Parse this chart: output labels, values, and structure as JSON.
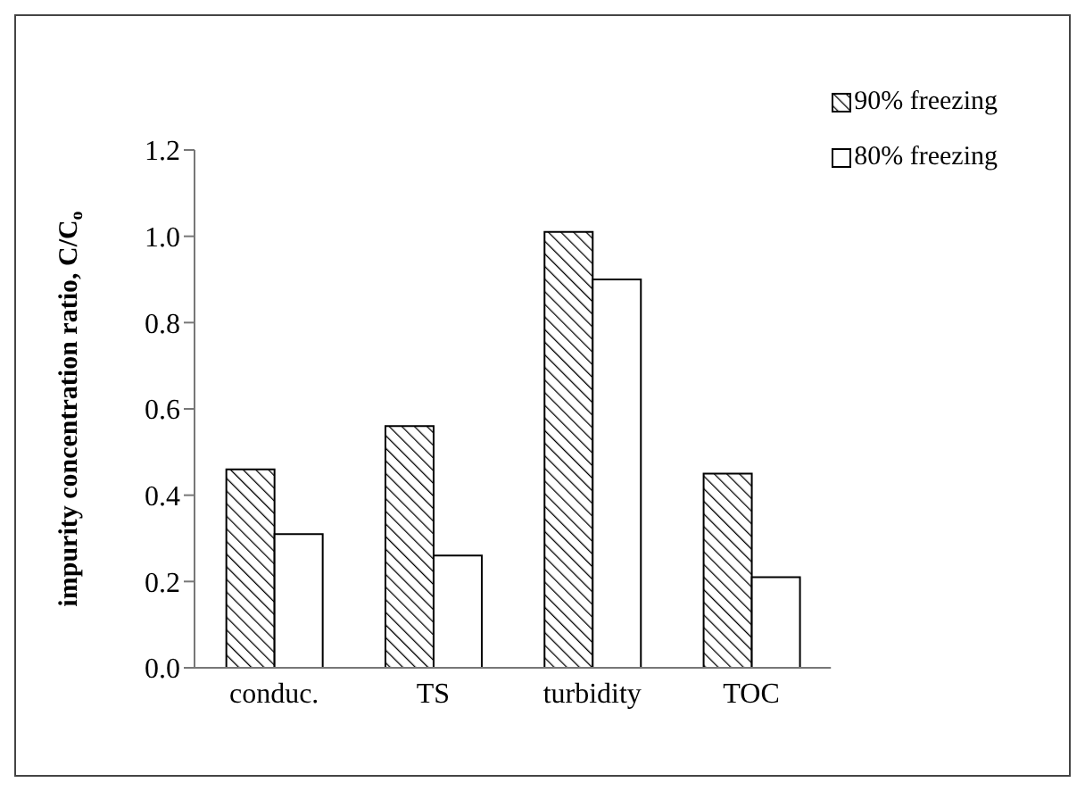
{
  "chart_data": {
    "type": "bar",
    "ylabel": "impurity concentration ratio, C/C$_{o}$",
    "categories": [
      "conduc.",
      "TS",
      "turbidity",
      "TOC"
    ],
    "series": [
      {
        "name": "90% freezing",
        "color": "#000000",
        "values": [
          0.46,
          0.56,
          1.01,
          0.45
        ]
      },
      {
        "name": "80% freezing",
        "color": "#ffffff",
        "values": [
          0.31,
          0.26,
          0.9,
          0.21
        ]
      }
    ],
    "ylim": [
      0,
      1.2
    ],
    "yticks": [
      {
        "value": 0,
        "label": "0.0"
      },
      {
        "value": 0.2,
        "label": "0.2"
      },
      {
        "value": 0.4,
        "label": "0.4"
      },
      {
        "value": 0.6,
        "label": "0.6"
      },
      {
        "value": 0.8,
        "label": "0.8"
      },
      {
        "value": 1,
        "label": "1.0"
      },
      {
        "value": 1.2,
        "label": "1.2"
      }
    ],
    "grid": false,
    "legend": "top right"
  }
}
